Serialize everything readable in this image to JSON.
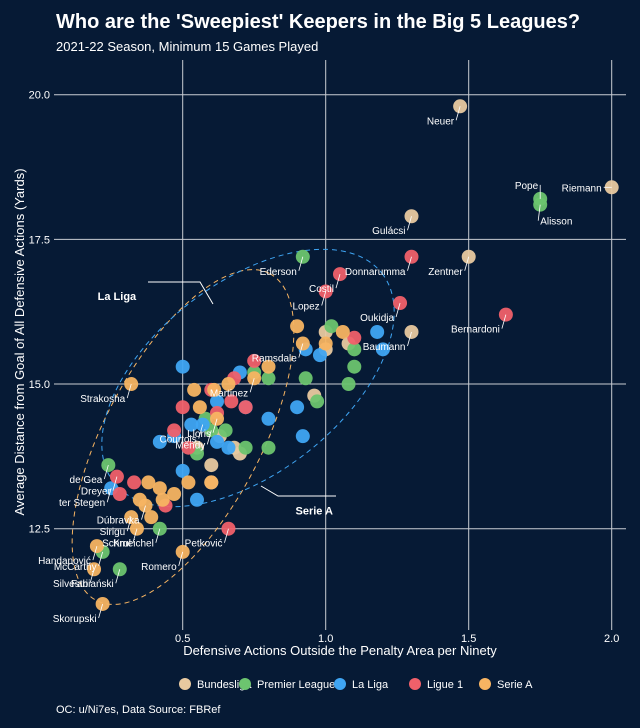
{
  "chart_data": {
    "type": "scatter",
    "title": "Who are the 'Sweepiest' Keepers in the Big 5 Leagues?",
    "subtitle": "2021-22 Season, Minimum 15 Games Played",
    "xlabel": "Defensive Actions Outside the Penalty Area per Ninety",
    "ylabel": "Average Distance from Goal of All Defensive Actions (Yards)",
    "xlim": [
      0.05,
      2.05
    ],
    "ylim": [
      10.75,
      20.6
    ],
    "xticks": [
      0.5,
      1.0,
      1.5,
      2.0
    ],
    "xtick_labels": [
      "0.5",
      "1.0",
      "1.5",
      "2.0"
    ],
    "yticks": [
      12.5,
      15.0,
      17.5,
      20.0
    ],
    "ytick_labels": [
      "12.5",
      "15.0",
      "17.5",
      "20.0"
    ],
    "grid": true,
    "legend_position": "bottom",
    "caption": "OC: u/Ni7es,  Data Source: FBRef",
    "annotations": [
      {
        "text": "La Liga",
        "x": 0.27,
        "y": 16.45
      },
      {
        "text": "Serie A",
        "x": 0.96,
        "y": 12.75
      }
    ],
    "series": [
      {
        "name": "Bundesliga",
        "color": "#e8c9a0",
        "points": [
          {
            "x": 1.47,
            "y": 19.8,
            "label": "Neuer"
          },
          {
            "x": 2.0,
            "y": 18.4,
            "label": "Riemann"
          },
          {
            "x": 1.3,
            "y": 17.9,
            "label": "Gulácsi"
          },
          {
            "x": 1.5,
            "y": 17.2,
            "label": "Zentner"
          },
          {
            "x": 1.3,
            "y": 15.9,
            "label": "Baumann"
          },
          {
            "x": 1.0,
            "y": 15.9
          },
          {
            "x": 1.08,
            "y": 15.7
          },
          {
            "x": 0.96,
            "y": 14.8
          },
          {
            "x": 0.68,
            "y": 13.9
          },
          {
            "x": 0.6,
            "y": 13.6
          },
          {
            "x": 0.6,
            "y": 13.3
          },
          {
            "x": 0.7,
            "y": 13.8
          },
          {
            "x": 1.0,
            "y": 15.6
          },
          {
            "x": 0.63,
            "y": 14.1
          },
          {
            "x": 0.55,
            "y": 13.9
          }
        ]
      },
      {
        "name": "Premier League",
        "color": "#6cc46f",
        "points": [
          {
            "x": 1.75,
            "y": 18.2,
            "label": "Pope"
          },
          {
            "x": 1.75,
            "y": 18.1,
            "label": "Alisson"
          },
          {
            "x": 0.92,
            "y": 17.2,
            "label": "Ederson"
          },
          {
            "x": 0.6,
            "y": 14.2,
            "label": "Mendy"
          },
          {
            "x": 0.24,
            "y": 13.6,
            "label": "de Gea"
          },
          {
            "x": 0.22,
            "y": 12.1,
            "label": "McCarthy"
          },
          {
            "x": 0.28,
            "y": 11.8,
            "label": "Fabiański"
          },
          {
            "x": 0.42,
            "y": 12.5,
            "label": "Schmeichel"
          },
          {
            "x": 1.02,
            "y": 16.0
          },
          {
            "x": 1.1,
            "y": 15.6
          },
          {
            "x": 1.1,
            "y": 15.3
          },
          {
            "x": 1.08,
            "y": 15.0
          },
          {
            "x": 0.97,
            "y": 14.7
          },
          {
            "x": 0.93,
            "y": 15.1
          },
          {
            "x": 0.8,
            "y": 15.1
          },
          {
            "x": 0.75,
            "y": 15.2
          },
          {
            "x": 0.58,
            "y": 14.4
          },
          {
            "x": 0.72,
            "y": 13.9
          },
          {
            "x": 0.8,
            "y": 13.9
          },
          {
            "x": 0.55,
            "y": 13.8
          },
          {
            "x": 0.65,
            "y": 14.2
          }
        ]
      },
      {
        "name": "La Liga",
        "color": "#3fa5f3",
        "points": [
          {
            "x": 0.57,
            "y": 14.3,
            "label": "Courtois"
          },
          {
            "x": 1.18,
            "y": 15.9
          },
          {
            "x": 1.2,
            "y": 15.6
          },
          {
            "x": 0.98,
            "y": 15.5
          },
          {
            "x": 0.93,
            "y": 15.6
          },
          {
            "x": 0.5,
            "y": 15.3
          },
          {
            "x": 0.62,
            "y": 14.7
          },
          {
            "x": 0.7,
            "y": 15.2
          },
          {
            "x": 0.72,
            "y": 14.6
          },
          {
            "x": 0.8,
            "y": 14.4
          },
          {
            "x": 0.9,
            "y": 14.6
          },
          {
            "x": 0.53,
            "y": 14.3
          },
          {
            "x": 0.47,
            "y": 14.1
          },
          {
            "x": 0.42,
            "y": 14.0
          },
          {
            "x": 0.66,
            "y": 13.9
          },
          {
            "x": 0.5,
            "y": 13.5
          },
          {
            "x": 0.55,
            "y": 13.0
          },
          {
            "x": 0.92,
            "y": 14.1
          },
          {
            "x": 0.62,
            "y": 14.0
          },
          {
            "x": 0.25,
            "y": 13.2,
            "label": "ter Stegen"
          }
        ]
      },
      {
        "name": "Ligue 1",
        "color": "#f0606a",
        "points": [
          {
            "x": 1.3,
            "y": 17.2,
            "label": "Donnarumma"
          },
          {
            "x": 1.05,
            "y": 16.9,
            "label": "Costil"
          },
          {
            "x": 1.0,
            "y": 16.6,
            "label": "Lopez"
          },
          {
            "x": 1.26,
            "y": 16.4,
            "label": "Oukidja"
          },
          {
            "x": 1.63,
            "y": 16.2,
            "label": "Bernardoni"
          },
          {
            "x": 0.66,
            "y": 12.5,
            "label": "Petković"
          },
          {
            "x": 0.27,
            "y": 13.4,
            "label": "Dreyer"
          },
          {
            "x": 1.1,
            "y": 15.8
          },
          {
            "x": 0.75,
            "y": 15.4
          },
          {
            "x": 0.68,
            "y": 15.1
          },
          {
            "x": 0.6,
            "y": 14.9
          },
          {
            "x": 0.67,
            "y": 14.7
          },
          {
            "x": 0.5,
            "y": 14.6
          },
          {
            "x": 0.72,
            "y": 14.6
          },
          {
            "x": 0.62,
            "y": 14.5
          },
          {
            "x": 0.47,
            "y": 14.2
          },
          {
            "x": 0.52,
            "y": 13.9
          },
          {
            "x": 0.33,
            "y": 13.3
          },
          {
            "x": 0.28,
            "y": 13.1
          },
          {
            "x": 0.44,
            "y": 12.9
          }
        ]
      },
      {
        "name": "Serie A",
        "color": "#f7b462",
        "points": [
          {
            "x": 0.92,
            "y": 15.7,
            "label": "Ramsdale"
          },
          {
            "x": 0.2,
            "y": 12.2,
            "label": "Handanović"
          },
          {
            "x": 0.19,
            "y": 11.8,
            "label": "Silvestri"
          },
          {
            "x": 0.22,
            "y": 11.2,
            "label": "Skorupski"
          },
          {
            "x": 0.5,
            "y": 12.1,
            "label": "Romero"
          },
          {
            "x": 0.34,
            "y": 12.5,
            "label": "Krul"
          },
          {
            "x": 0.32,
            "y": 12.7,
            "label": "Sirigu"
          },
          {
            "x": 0.37,
            "y": 12.9,
            "label": "Dúbravka"
          },
          {
            "x": 0.75,
            "y": 15.1,
            "label": "Martinez"
          },
          {
            "x": 0.62,
            "y": 14.4,
            "label": "Lloris"
          },
          {
            "x": 0.32,
            "y": 15.0,
            "label": "Strakosha"
          },
          {
            "x": 0.9,
            "y": 16.0
          },
          {
            "x": 1.06,
            "y": 15.9
          },
          {
            "x": 1.0,
            "y": 15.7
          },
          {
            "x": 0.8,
            "y": 15.3
          },
          {
            "x": 0.66,
            "y": 15.0
          },
          {
            "x": 0.61,
            "y": 14.9
          },
          {
            "x": 0.54,
            "y": 14.9
          },
          {
            "x": 0.56,
            "y": 14.6
          },
          {
            "x": 0.6,
            "y": 13.3
          },
          {
            "x": 0.52,
            "y": 13.3
          },
          {
            "x": 0.38,
            "y": 13.3
          },
          {
            "x": 0.35,
            "y": 13.0
          },
          {
            "x": 0.42,
            "y": 13.2
          },
          {
            "x": 0.47,
            "y": 13.1
          },
          {
            "x": 0.43,
            "y": 13.0
          },
          {
            "x": 0.39,
            "y": 12.7
          }
        ]
      }
    ]
  }
}
